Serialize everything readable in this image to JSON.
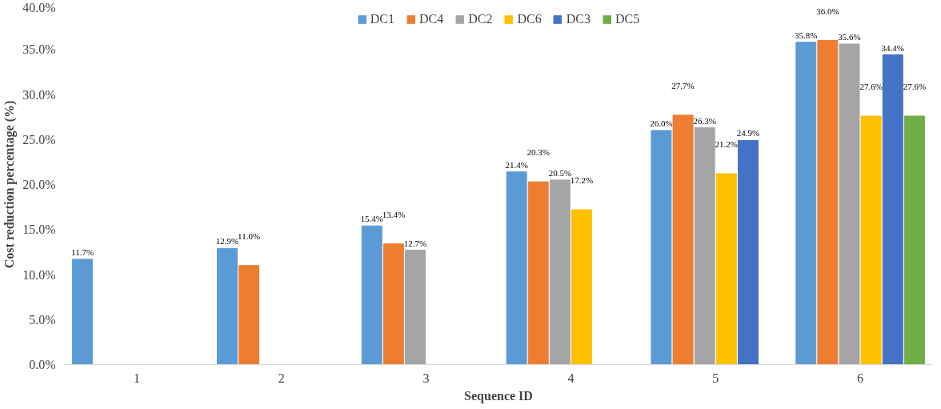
{
  "chart_data": {
    "type": "bar",
    "xlabel": "Sequence ID",
    "ylabel": "Cost reduction percentage (%)",
    "categories": [
      "1",
      "2",
      "3",
      "4",
      "5",
      "6"
    ],
    "series": [
      {
        "name": "DC1",
        "color": "#5b9bd5",
        "values": [
          11.7,
          12.9,
          15.4,
          21.4,
          26.0,
          35.8
        ],
        "value_labels": [
          "11.7%",
          "12.9%",
          "15.4%",
          "21.4%",
          "26.0%",
          "35.8%"
        ]
      },
      {
        "name": "DC4",
        "color": "#ed7d31",
        "values": [
          null,
          11.0,
          13.4,
          20.3,
          27.7,
          36.0
        ],
        "value_labels": [
          null,
          "11.0%",
          "13.4%",
          "20.3%",
          "27.7%",
          "36.0%"
        ]
      },
      {
        "name": "DC2",
        "color": "#a5a5a5",
        "values": [
          null,
          null,
          12.7,
          20.5,
          26.3,
          35.6
        ],
        "value_labels": [
          null,
          null,
          "12.7%",
          "20.5%",
          "26.3%",
          "35.6%"
        ]
      },
      {
        "name": "DC6",
        "color": "#ffc000",
        "values": [
          null,
          null,
          null,
          17.2,
          21.2,
          27.6
        ],
        "value_labels": [
          null,
          null,
          null,
          "17.2%",
          "21.2%",
          "27.6%"
        ]
      },
      {
        "name": "DC3",
        "color": "#4472c4",
        "values": [
          null,
          null,
          null,
          null,
          24.9,
          34.4
        ],
        "value_labels": [
          null,
          null,
          null,
          null,
          "24.9%",
          "34.4%"
        ]
      },
      {
        "name": "DC5",
        "color": "#70ad47",
        "values": [
          null,
          null,
          null,
          null,
          null,
          27.6
        ],
        "value_labels": [
          null,
          null,
          null,
          null,
          null,
          "27.6%"
        ]
      }
    ],
    "ylim": [
      0,
      40
    ],
    "yticks": [
      {
        "value": 0,
        "label": "0.0%"
      },
      {
        "value": 5,
        "label": "5.0%"
      },
      {
        "value": 10,
        "label": "10.0%"
      },
      {
        "value": 15,
        "label": "15.0%"
      },
      {
        "value": 20,
        "label": "20.0%"
      },
      {
        "value": 25,
        "label": "25.0%"
      },
      {
        "value": 30,
        "label": "30.0%"
      },
      {
        "value": 35,
        "label": "35.0%"
      },
      {
        "value": 40,
        "label": "40.0%"
      }
    ],
    "legend": "top",
    "grid": false
  }
}
